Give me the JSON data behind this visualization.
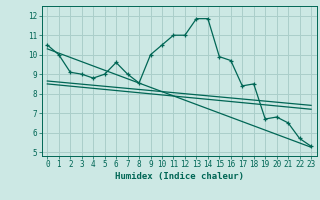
{
  "title": "",
  "xlabel": "Humidex (Indice chaleur)",
  "ylabel": "",
  "bg_color": "#cce8e4",
  "grid_color": "#aaceca",
  "line_color": "#006655",
  "xlim": [
    -0.5,
    23.5
  ],
  "ylim": [
    4.8,
    12.5
  ],
  "xticks": [
    0,
    1,
    2,
    3,
    4,
    5,
    6,
    7,
    8,
    9,
    10,
    11,
    12,
    13,
    14,
    15,
    16,
    17,
    18,
    19,
    20,
    21,
    22,
    23
  ],
  "yticks": [
    5,
    6,
    7,
    8,
    9,
    10,
    11,
    12
  ],
  "main_x": [
    0,
    1,
    2,
    3,
    4,
    5,
    6,
    7,
    8,
    9,
    10,
    11,
    12,
    13,
    14,
    15,
    16,
    17,
    18,
    19,
    20,
    21,
    22,
    23
  ],
  "main_y": [
    10.5,
    10.0,
    9.1,
    9.0,
    8.8,
    9.0,
    9.6,
    9.0,
    8.55,
    10.0,
    10.5,
    11.0,
    11.0,
    11.85,
    11.85,
    9.9,
    9.7,
    8.4,
    8.5,
    6.7,
    6.8,
    6.5,
    5.7,
    5.3
  ],
  "trend1_x": [
    0,
    23
  ],
  "trend1_y": [
    10.3,
    5.25
  ],
  "trend2_x": [
    0,
    23
  ],
  "trend2_y": [
    8.65,
    7.4
  ],
  "trend3_x": [
    0,
    23
  ],
  "trend3_y": [
    8.5,
    7.2
  ]
}
